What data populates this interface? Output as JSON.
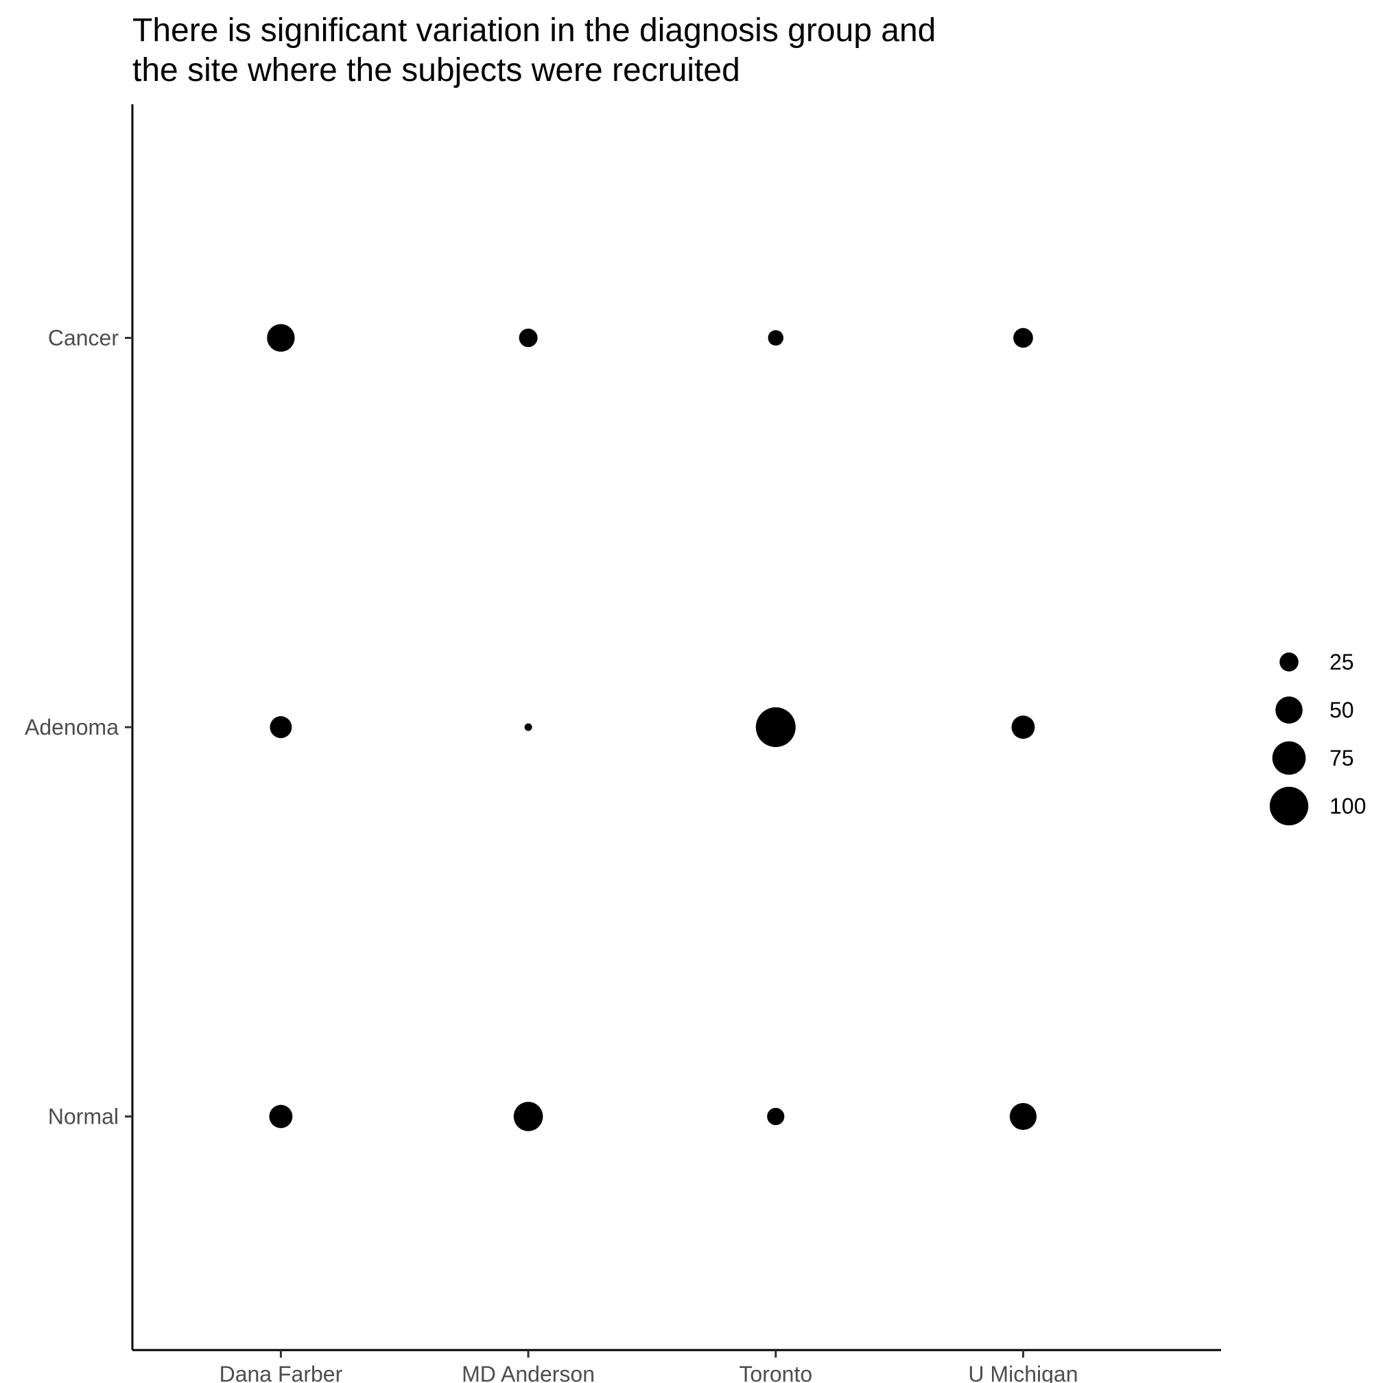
{
  "chart_data": {
    "type": "scatter",
    "title_lines": [
      "There is significant variation in the diagnosis group and",
      "the site where the subjects were recruited"
    ],
    "xlabel": "",
    "ylabel": "",
    "x_categories": [
      "Dana Farber",
      "MD Anderson",
      "Toronto",
      "U Michigan"
    ],
    "y_categories": [
      "Normal",
      "Adenoma",
      "Cancer"
    ],
    "size_legend": {
      "title": "",
      "breaks": [
        25,
        50,
        75,
        100
      ],
      "labels": [
        "25",
        "50",
        "75",
        "100"
      ],
      "placement": "right"
    },
    "points": [
      {
        "x": "Dana Farber",
        "y": "Cancer",
        "size": 52
      },
      {
        "x": "MD Anderson",
        "y": "Cancer",
        "size": 24
      },
      {
        "x": "Toronto",
        "y": "Cancer",
        "size": 17
      },
      {
        "x": "U Michigan",
        "y": "Cancer",
        "size": 27
      },
      {
        "x": "Dana Farber",
        "y": "Adenoma",
        "size": 33
      },
      {
        "x": "MD Anderson",
        "y": "Adenoma",
        "size": 5
      },
      {
        "x": "Toronto",
        "y": "Adenoma",
        "size": 106
      },
      {
        "x": "U Michigan",
        "y": "Adenoma",
        "size": 37
      },
      {
        "x": "Dana Farber",
        "y": "Normal",
        "size": 37
      },
      {
        "x": "MD Anderson",
        "y": "Normal",
        "size": 58
      },
      {
        "x": "Toronto",
        "y": "Normal",
        "size": 21
      },
      {
        "x": "U Michigan",
        "y": "Normal",
        "size": 49
      }
    ],
    "point_color": "#000000",
    "grid": false
  }
}
